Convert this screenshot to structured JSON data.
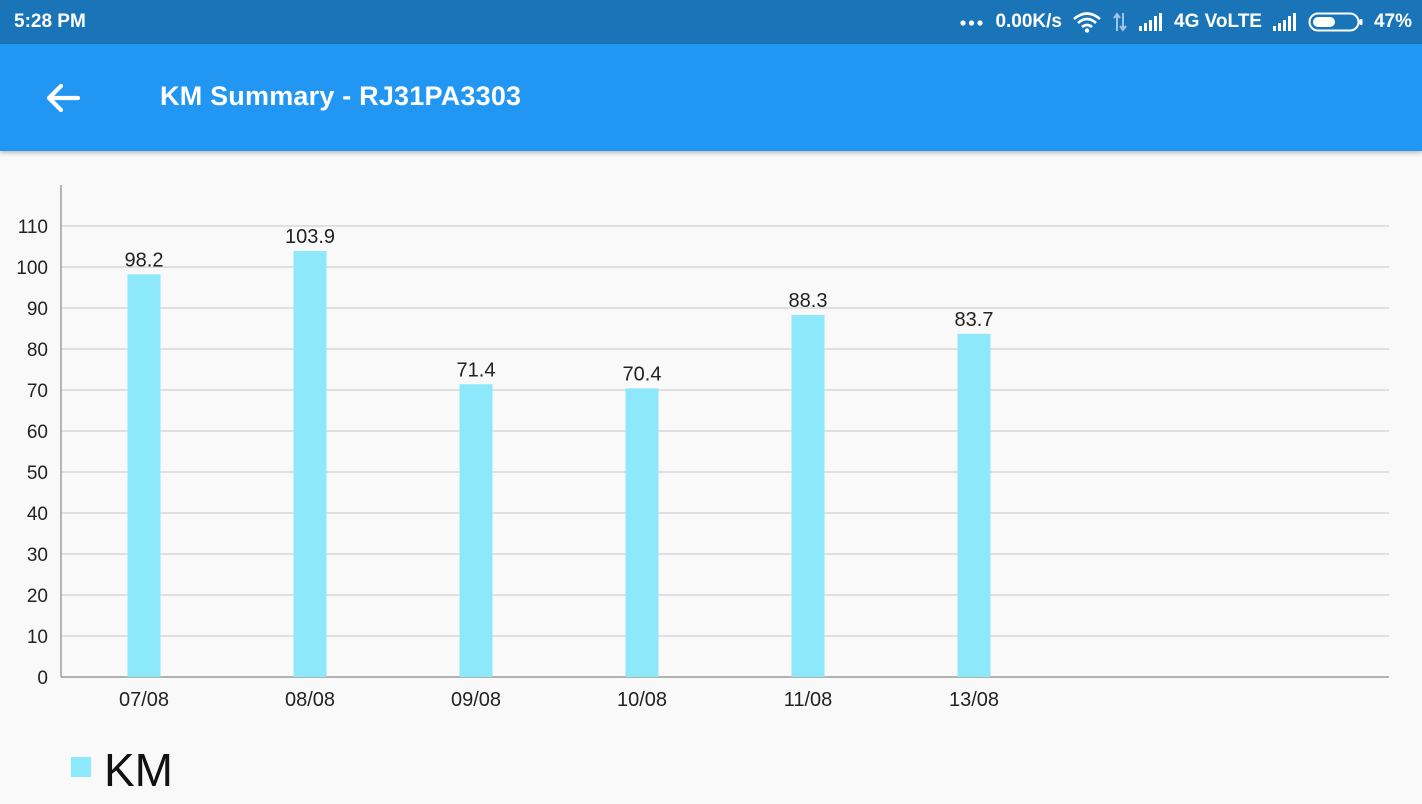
{
  "status_bar": {
    "time": "5:28 PM",
    "more_dots": "...",
    "net_speed": "0.00K/s",
    "network_type": "4G VoLTE",
    "battery_percent": "47%",
    "icons": [
      "more-dots-icon",
      "wifi-icon",
      "data-transfer-icon",
      "signal-icon",
      "signal-icon-2",
      "battery-icon"
    ]
  },
  "app_bar": {
    "back_icon": "arrow-back-icon",
    "title": "KM Summary - RJ31PA3303",
    "background": "#2196f3"
  },
  "chart_data": {
    "type": "bar",
    "title": "",
    "xlabel": "",
    "ylabel": "",
    "categories": [
      "07/08",
      "08/08",
      "09/08",
      "10/08",
      "11/08",
      "13/08"
    ],
    "series": [
      {
        "name": "KM",
        "values": [
          98.2,
          103.9,
          71.4,
          70.4,
          88.3,
          83.7
        ],
        "color": "#8de8fb"
      }
    ],
    "value_labels": [
      "98.2",
      "103.9",
      "71.4",
      "70.4",
      "88.3",
      "83.7"
    ],
    "ylim": [
      0,
      120
    ],
    "y_ticks": [
      0,
      10,
      20,
      30,
      40,
      50,
      60,
      70,
      80,
      90,
      100,
      110
    ],
    "grid": true,
    "legend_position": "bottom-left"
  }
}
